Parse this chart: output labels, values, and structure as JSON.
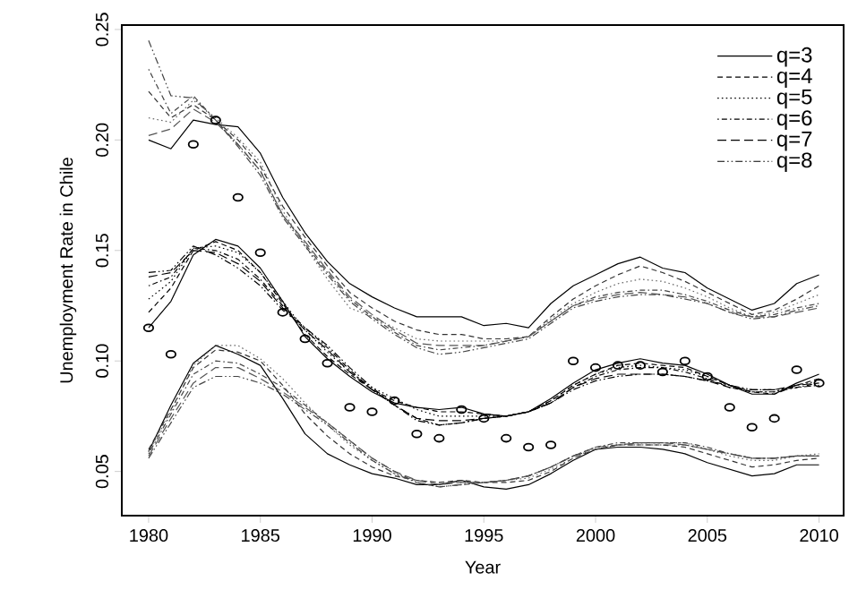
{
  "chart_data": {
    "type": "line",
    "xlabel": "Year",
    "ylabel": "Unemployment Rate in Chile",
    "x": [
      1980,
      1981,
      1982,
      1983,
      1984,
      1985,
      1986,
      1987,
      1988,
      1989,
      1990,
      1991,
      1992,
      1993,
      1994,
      1995,
      1996,
      1997,
      1998,
      1999,
      2000,
      2001,
      2002,
      2003,
      2004,
      2005,
      2006,
      2007,
      2008,
      2009,
      2010
    ],
    "xlim": [
      1978.8,
      2011.1
    ],
    "xticks": [
      1980,
      1985,
      1990,
      1995,
      2000,
      2005,
      2010
    ],
    "ylim": [
      0.03,
      0.252
    ],
    "yticks": [
      {
        "value": 0.05,
        "label": "0.05"
      },
      {
        "value": 0.1,
        "label": "0.10"
      },
      {
        "value": 0.15,
        "label": "0.15"
      },
      {
        "value": 0.2,
        "label": "0.20"
      },
      {
        "value": 0.25,
        "label": "0.25"
      }
    ],
    "legend": "top right",
    "series": [
      {
        "name": "q=3",
        "color": "#000000",
        "line_style": "solid",
        "values": [
          0.115,
          0.127,
          0.148,
          0.155,
          0.152,
          0.142,
          0.127,
          0.111,
          0.101,
          0.093,
          0.086,
          0.081,
          0.079,
          0.078,
          0.079,
          0.076,
          0.075,
          0.077,
          0.083,
          0.09,
          0.096,
          0.099,
          0.101,
          0.099,
          0.098,
          0.094,
          0.089,
          0.085,
          0.085,
          0.09,
          0.094
        ]
      },
      {
        "color": "#000000",
        "line_style": "solid",
        "values": [
          0.2,
          0.196,
          0.209,
          0.207,
          0.206,
          0.194,
          0.174,
          0.158,
          0.145,
          0.135,
          0.129,
          0.124,
          0.12,
          0.12,
          0.12,
          0.116,
          0.117,
          0.115,
          0.126,
          0.134,
          0.139,
          0.144,
          0.147,
          0.142,
          0.14,
          0.133,
          0.128,
          0.123,
          0.126,
          0.135,
          0.139
        ]
      },
      {
        "color": "#000000",
        "line_style": "solid",
        "values": [
          0.059,
          0.08,
          0.099,
          0.107,
          0.103,
          0.098,
          0.083,
          0.067,
          0.058,
          0.053,
          0.049,
          0.047,
          0.044,
          0.044,
          0.046,
          0.043,
          0.042,
          0.044,
          0.049,
          0.055,
          0.06,
          0.061,
          0.061,
          0.06,
          0.058,
          0.054,
          0.051,
          0.048,
          0.049,
          0.053,
          0.053
        ]
      },
      {
        "name": "q=4",
        "color": "#000000",
        "line_style": "dashed",
        "values": [
          0.122,
          0.133,
          0.15,
          0.154,
          0.15,
          0.14,
          0.126,
          0.112,
          0.102,
          0.094,
          0.087,
          0.082,
          0.079,
          0.077,
          0.077,
          0.076,
          0.075,
          0.077,
          0.082,
          0.089,
          0.094,
          0.098,
          0.099,
          0.098,
          0.097,
          0.093,
          0.089,
          0.086,
          0.085,
          0.089,
          0.092
        ]
      },
      {
        "color": "#333333",
        "line_style": "dashed",
        "values": [
          0.222,
          0.21,
          0.216,
          0.209,
          0.2,
          0.188,
          0.17,
          0.156,
          0.143,
          0.131,
          0.124,
          0.118,
          0.114,
          0.112,
          0.112,
          0.11,
          0.11,
          0.111,
          0.12,
          0.128,
          0.134,
          0.139,
          0.143,
          0.14,
          0.136,
          0.131,
          0.126,
          0.121,
          0.123,
          0.128,
          0.134
        ]
      },
      {
        "color": "#333333",
        "line_style": "dashed",
        "values": [
          0.06,
          0.078,
          0.097,
          0.105,
          0.104,
          0.1,
          0.089,
          0.076,
          0.066,
          0.058,
          0.052,
          0.048,
          0.046,
          0.045,
          0.046,
          0.045,
          0.045,
          0.046,
          0.05,
          0.056,
          0.06,
          0.062,
          0.062,
          0.062,
          0.061,
          0.058,
          0.055,
          0.052,
          0.053,
          0.055,
          0.056
        ]
      },
      {
        "name": "q=5",
        "color": "#000000",
        "line_style": "dotted",
        "values": [
          0.128,
          0.136,
          0.151,
          0.152,
          0.149,
          0.14,
          0.127,
          0.114,
          0.104,
          0.095,
          0.088,
          0.083,
          0.078,
          0.075,
          0.075,
          0.075,
          0.075,
          0.077,
          0.082,
          0.089,
          0.094,
          0.097,
          0.098,
          0.097,
          0.096,
          0.093,
          0.089,
          0.086,
          0.086,
          0.089,
          0.091
        ]
      },
      {
        "color": "#666666",
        "line_style": "dotted",
        "values": [
          0.21,
          0.208,
          0.218,
          0.21,
          0.201,
          0.19,
          0.168,
          0.152,
          0.137,
          0.124,
          0.12,
          0.115,
          0.11,
          0.109,
          0.109,
          0.109,
          0.109,
          0.111,
          0.119,
          0.126,
          0.131,
          0.135,
          0.137,
          0.136,
          0.133,
          0.129,
          0.124,
          0.12,
          0.122,
          0.126,
          0.13
        ]
      },
      {
        "color": "#666666",
        "line_style": "dotted",
        "values": [
          0.059,
          0.077,
          0.098,
          0.107,
          0.107,
          0.101,
          0.092,
          0.081,
          0.071,
          0.062,
          0.055,
          0.049,
          0.046,
          0.045,
          0.045,
          0.045,
          0.046,
          0.047,
          0.051,
          0.056,
          0.061,
          0.062,
          0.063,
          0.063,
          0.063,
          0.06,
          0.057,
          0.055,
          0.055,
          0.057,
          0.058
        ]
      },
      {
        "name": "q=6",
        "color": "#000000",
        "line_style": "dashdot",
        "values": [
          0.134,
          0.138,
          0.151,
          0.15,
          0.146,
          0.137,
          0.125,
          0.115,
          0.106,
          0.096,
          0.087,
          0.08,
          0.074,
          0.071,
          0.072,
          0.074,
          0.075,
          0.077,
          0.081,
          0.088,
          0.093,
          0.096,
          0.097,
          0.097,
          0.095,
          0.092,
          0.088,
          0.086,
          0.086,
          0.088,
          0.09
        ]
      },
      {
        "color": "#444444",
        "line_style": "dashdot",
        "values": [
          0.232,
          0.212,
          0.22,
          0.209,
          0.198,
          0.186,
          0.166,
          0.153,
          0.14,
          0.128,
          0.12,
          0.113,
          0.107,
          0.105,
          0.106,
          0.107,
          0.109,
          0.111,
          0.118,
          0.125,
          0.129,
          0.131,
          0.132,
          0.132,
          0.13,
          0.127,
          0.123,
          0.12,
          0.121,
          0.124,
          0.126
        ]
      },
      {
        "color": "#444444",
        "line_style": "dashdot",
        "values": [
          0.058,
          0.076,
          0.094,
          0.1,
          0.099,
          0.094,
          0.088,
          0.08,
          0.072,
          0.064,
          0.056,
          0.05,
          0.045,
          0.043,
          0.044,
          0.045,
          0.046,
          0.048,
          0.052,
          0.057,
          0.061,
          0.063,
          0.063,
          0.063,
          0.063,
          0.061,
          0.058,
          0.056,
          0.056,
          0.057,
          0.057
        ]
      },
      {
        "name": "q=7",
        "color": "#000000",
        "line_style": "longdash",
        "values": [
          0.138,
          0.14,
          0.15,
          0.149,
          0.144,
          0.136,
          0.124,
          0.114,
          0.105,
          0.095,
          0.087,
          0.08,
          0.074,
          0.073,
          0.073,
          0.074,
          0.075,
          0.077,
          0.081,
          0.088,
          0.092,
          0.094,
          0.094,
          0.094,
          0.093,
          0.091,
          0.088,
          0.087,
          0.087,
          0.089,
          0.09
        ]
      },
      {
        "color": "#555555",
        "line_style": "longdash",
        "values": [
          0.202,
          0.205,
          0.214,
          0.208,
          0.198,
          0.186,
          0.166,
          0.154,
          0.141,
          0.129,
          0.121,
          0.114,
          0.108,
          0.107,
          0.107,
          0.107,
          0.109,
          0.111,
          0.118,
          0.125,
          0.128,
          0.13,
          0.131,
          0.13,
          0.129,
          0.126,
          0.122,
          0.12,
          0.12,
          0.122,
          0.124
        ]
      },
      {
        "color": "#555555",
        "line_style": "longdash",
        "values": [
          0.057,
          0.074,
          0.09,
          0.097,
          0.097,
          0.092,
          0.086,
          0.079,
          0.072,
          0.064,
          0.056,
          0.05,
          0.046,
          0.044,
          0.045,
          0.045,
          0.046,
          0.048,
          0.052,
          0.057,
          0.061,
          0.062,
          0.063,
          0.063,
          0.062,
          0.06,
          0.058,
          0.056,
          0.056,
          0.057,
          0.057
        ]
      },
      {
        "name": "q=8",
        "color": "#000000",
        "line_style": "dashdotdot",
        "values": [
          0.14,
          0.141,
          0.152,
          0.148,
          0.142,
          0.134,
          0.123,
          0.115,
          0.107,
          0.097,
          0.088,
          0.08,
          0.073,
          0.071,
          0.072,
          0.074,
          0.075,
          0.077,
          0.081,
          0.087,
          0.091,
          0.093,
          0.094,
          0.094,
          0.093,
          0.091,
          0.089,
          0.087,
          0.087,
          0.088,
          0.089
        ]
      },
      {
        "color": "#444444",
        "line_style": "dashdotdot",
        "values": [
          0.245,
          0.22,
          0.219,
          0.209,
          0.197,
          0.184,
          0.165,
          0.152,
          0.139,
          0.127,
          0.119,
          0.112,
          0.106,
          0.103,
          0.104,
          0.106,
          0.108,
          0.11,
          0.117,
          0.124,
          0.127,
          0.129,
          0.13,
          0.13,
          0.128,
          0.126,
          0.122,
          0.119,
          0.12,
          0.123,
          0.125
        ]
      },
      {
        "color": "#444444",
        "line_style": "dashdotdot",
        "values": [
          0.056,
          0.072,
          0.088,
          0.093,
          0.093,
          0.09,
          0.085,
          0.078,
          0.071,
          0.063,
          0.055,
          0.049,
          0.045,
          0.043,
          0.044,
          0.045,
          0.046,
          0.048,
          0.052,
          0.057,
          0.06,
          0.062,
          0.062,
          0.062,
          0.062,
          0.06,
          0.058,
          0.056,
          0.056,
          0.057,
          0.057
        ]
      },
      {
        "type": "scatter",
        "marker": "circle",
        "color": "#000000",
        "values": [
          0.115,
          0.103,
          0.198,
          0.209,
          0.174,
          0.149,
          0.122,
          0.11,
          0.099,
          0.079,
          0.077,
          0.082,
          0.067,
          0.065,
          0.078,
          0.074,
          0.065,
          0.061,
          0.062,
          0.1,
          0.097,
          0.098,
          0.098,
          0.095,
          0.1,
          0.093,
          0.079,
          0.07,
          0.074,
          0.096,
          0.09
        ]
      }
    ]
  }
}
